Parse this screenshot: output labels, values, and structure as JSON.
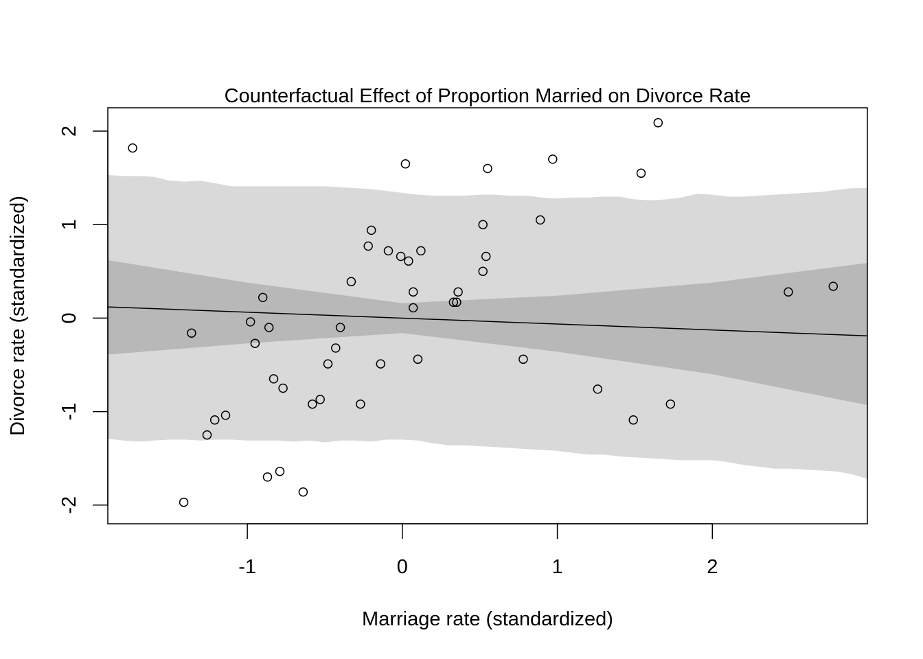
{
  "chart_data": {
    "type": "scatter",
    "title": "Counterfactual Effect of Proportion Married on Divorce Rate",
    "xlabel": "Marriage rate (standardized)",
    "ylabel": "Divorce rate (standardized)",
    "xlim": [
      -1.9,
      3.0
    ],
    "ylim": [
      -2.2,
      2.25
    ],
    "x_ticks": [
      -1,
      0,
      1,
      2
    ],
    "x_tick_labels": [
      "-1",
      "0",
      "1",
      "2"
    ],
    "y_ticks": [
      -2,
      -1,
      0,
      1,
      2
    ],
    "y_tick_labels": [
      "-2",
      "-1",
      "0",
      "1",
      "2"
    ],
    "grid": false,
    "colors": {
      "prediction_band": "#d9d9d9",
      "mean_band": "#b8b8b8",
      "line": "#000000",
      "points": "#000000"
    },
    "mean_line": {
      "x": [
        -1.9,
        3.0
      ],
      "y": [
        0.12,
        -0.19
      ]
    },
    "mean_interval": {
      "x": [
        -1.9,
        -1.0,
        0.0,
        1.0,
        2.0,
        3.0
      ],
      "lower": [
        -0.39,
        -0.27,
        -0.16,
        -0.36,
        -0.6,
        -0.93
      ],
      "upper": [
        0.62,
        0.38,
        0.16,
        0.24,
        0.38,
        0.59
      ]
    },
    "prediction_interval": {
      "x": [
        -1.9,
        -1.8,
        -1.7,
        -1.6,
        -1.5,
        -1.4,
        -1.3,
        -1.2,
        -1.1,
        -1.0,
        -0.9,
        -0.8,
        -0.7,
        -0.6,
        -0.5,
        -0.4,
        -0.3,
        -0.2,
        -0.1,
        0.0,
        0.1,
        0.2,
        0.3,
        0.4,
        0.5,
        0.6,
        0.7,
        0.8,
        0.9,
        1.0,
        1.1,
        1.2,
        1.3,
        1.4,
        1.5,
        1.6,
        1.7,
        1.8,
        1.9,
        2.0,
        2.1,
        2.2,
        2.3,
        2.4,
        2.5,
        2.6,
        2.7,
        2.8,
        2.9,
        3.0
      ],
      "lower": [
        -1.29,
        -1.31,
        -1.32,
        -1.31,
        -1.3,
        -1.3,
        -1.31,
        -1.3,
        -1.3,
        -1.31,
        -1.31,
        -1.31,
        -1.32,
        -1.31,
        -1.33,
        -1.31,
        -1.31,
        -1.32,
        -1.3,
        -1.3,
        -1.31,
        -1.34,
        -1.36,
        -1.36,
        -1.37,
        -1.38,
        -1.39,
        -1.4,
        -1.41,
        -1.42,
        -1.44,
        -1.46,
        -1.46,
        -1.48,
        -1.49,
        -1.5,
        -1.51,
        -1.52,
        -1.52,
        -1.52,
        -1.54,
        -1.57,
        -1.59,
        -1.61,
        -1.61,
        -1.62,
        -1.63,
        -1.64,
        -1.67,
        -1.72
      ],
      "upper": [
        1.53,
        1.52,
        1.52,
        1.51,
        1.47,
        1.46,
        1.47,
        1.44,
        1.41,
        1.41,
        1.41,
        1.41,
        1.41,
        1.41,
        1.41,
        1.4,
        1.39,
        1.38,
        1.36,
        1.34,
        1.32,
        1.31,
        1.31,
        1.31,
        1.32,
        1.32,
        1.31,
        1.31,
        1.29,
        1.28,
        1.29,
        1.29,
        1.3,
        1.3,
        1.27,
        1.26,
        1.27,
        1.29,
        1.33,
        1.32,
        1.3,
        1.3,
        1.31,
        1.32,
        1.33,
        1.34,
        1.35,
        1.37,
        1.39,
        1.39
      ]
    },
    "points": {
      "x": [
        -1.74,
        -1.36,
        -1.41,
        -1.21,
        -1.26,
        -1.14,
        -0.98,
        -0.95,
        -0.9,
        -0.87,
        -0.86,
        -0.83,
        -0.79,
        -0.77,
        -0.64,
        -0.58,
        -0.53,
        -0.48,
        -0.43,
        -0.4,
        -0.33,
        -0.27,
        -0.22,
        -0.2,
        -0.14,
        -0.09,
        -0.01,
        0.02,
        0.04,
        0.07,
        0.07,
        0.1,
        0.12,
        0.33,
        0.35,
        0.36,
        0.52,
        0.52,
        0.54,
        0.55,
        0.78,
        0.89,
        0.97,
        1.26,
        1.49,
        1.54,
        1.65,
        1.73,
        2.49,
        2.78
      ],
      "y": [
        1.82,
        -0.16,
        -1.97,
        -1.09,
        -1.25,
        -1.04,
        -0.04,
        -0.27,
        0.22,
        -1.7,
        -0.1,
        -0.65,
        -1.64,
        -0.75,
        -1.86,
        -0.92,
        -0.87,
        -0.49,
        -0.32,
        -0.1,
        0.39,
        -0.92,
        0.77,
        0.94,
        -0.49,
        0.72,
        0.66,
        1.65,
        0.61,
        0.28,
        0.11,
        -0.44,
        0.72,
        0.17,
        0.17,
        0.28,
        1.0,
        0.5,
        0.66,
        1.6,
        -0.44,
        1.05,
        1.7,
        -0.76,
        -1.09,
        1.55,
        2.09,
        -0.92,
        0.28,
        0.34
      ]
    }
  }
}
